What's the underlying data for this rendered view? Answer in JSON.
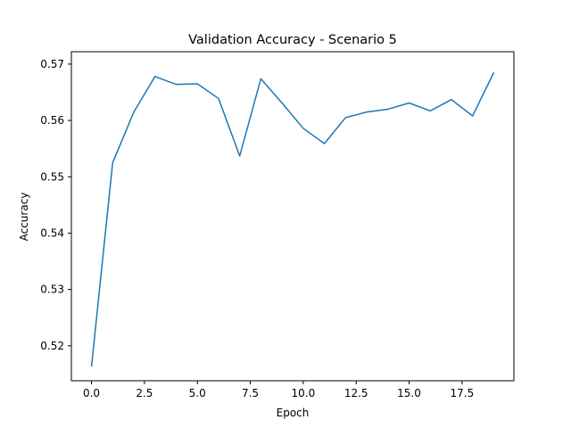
{
  "chart_data": {
    "type": "line",
    "title": "Validation Accuracy - Scenario 5",
    "xlabel": "Epoch",
    "ylabel": "Accuracy",
    "xlim": [
      -0.95,
      19.95
    ],
    "ylim": [
      0.5138,
      0.5722
    ],
    "x_ticks": [
      0,
      2.5,
      5,
      7.5,
      10,
      12.5,
      15,
      17.5
    ],
    "x_tick_labels": [
      "0.0",
      "2.5",
      "5.0",
      "7.5",
      "10.0",
      "12.5",
      "15.0",
      "17.5"
    ],
    "y_ticks": [
      0.52,
      0.53,
      0.54,
      0.55,
      0.56,
      0.57
    ],
    "y_tick_labels": [
      "0.52",
      "0.53",
      "0.54",
      "0.55",
      "0.56",
      "0.57"
    ],
    "grid": false,
    "series": [
      {
        "color": "#1f77b4",
        "x": [
          0,
          1,
          2,
          3,
          4,
          5,
          6,
          7,
          8,
          9,
          10,
          11,
          12,
          13,
          14,
          15,
          16,
          17,
          18,
          19
        ],
        "values": [
          0.5163,
          0.5525,
          0.5615,
          0.5678,
          0.5664,
          0.5665,
          0.5639,
          0.5537,
          0.5674,
          0.5631,
          0.5586,
          0.5559,
          0.5605,
          0.5615,
          0.562,
          0.5631,
          0.5617,
          0.5637,
          0.5608,
          0.5685
        ]
      }
    ]
  }
}
